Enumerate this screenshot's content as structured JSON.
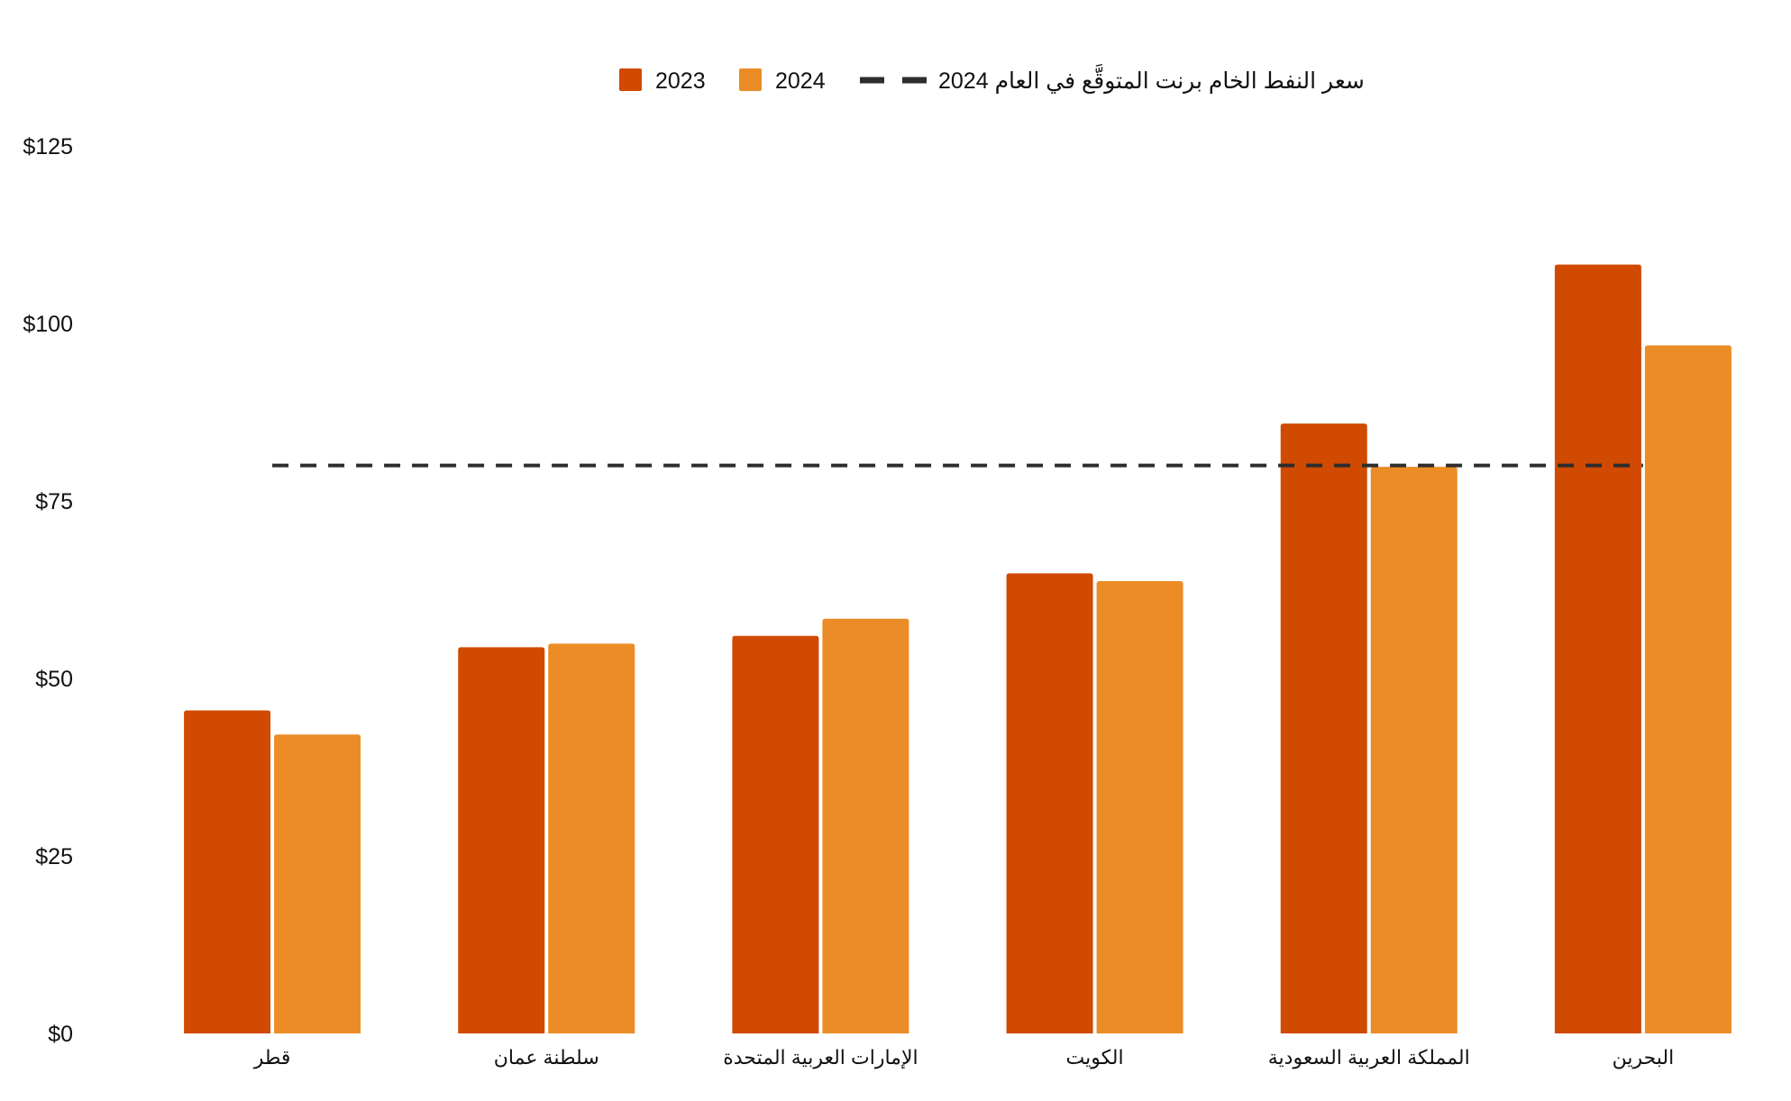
{
  "chart_data": {
    "type": "bar",
    "title": "",
    "xlabel": "",
    "ylabel": "",
    "categories": [
      "قطر",
      "سلطنة عمان",
      "الإمارات العربية المتحدة",
      "الكويت",
      "المملكة العربية السعودية",
      "البحرين"
    ],
    "series": [
      {
        "name": "2023",
        "color": "#D04A02",
        "values": [
          45.5,
          54.4,
          56.0,
          64.8,
          85.9,
          108.3
        ]
      },
      {
        "name": "2024",
        "color": "#EB8C26",
        "values": [
          42.1,
          54.9,
          58.4,
          63.7,
          79.8,
          96.9
        ]
      }
    ],
    "reference_line": {
      "name": "سعر النفط الخام برنت المتوقَّع في العام 2024",
      "value": 80,
      "color": "#2D2D2D",
      "style": "dashed"
    },
    "y_ticks": [
      0,
      25,
      50,
      75,
      100,
      125
    ],
    "y_tick_labels": [
      "$0",
      "$25",
      "$50",
      "$75",
      "$100",
      "$125"
    ],
    "ylim": [
      0,
      125
    ],
    "grid": false,
    "legend_position": "top-center"
  }
}
